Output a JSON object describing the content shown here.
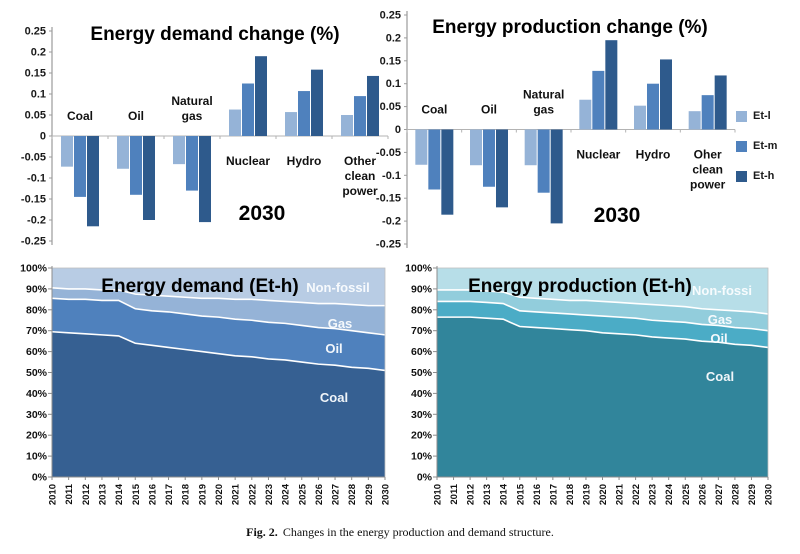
{
  "figure": {
    "caption_label": "Fig. 2.",
    "caption_text": "Changes in the energy production and demand structure."
  },
  "legend": {
    "items": [
      {
        "label": "Et-l",
        "color": "#95B3D7"
      },
      {
        "label": "Et-m",
        "color": "#4F81BD"
      },
      {
        "label": "Et-h",
        "color": "#2E5A8C"
      }
    ]
  },
  "chart_data": [
    {
      "id": "demand-change",
      "type": "bar",
      "title": "Energy demand change (%)",
      "annotation": "2030",
      "xlabel": "",
      "ylabel": "",
      "ylim": [
        -0.25,
        0.25
      ],
      "ytick_step": 0.05,
      "grid": false,
      "legend_position": "right-shared",
      "categories": [
        {
          "name": "Coal",
          "lines": [
            "Coal"
          ]
        },
        {
          "name": "Oil",
          "lines": [
            "Oil"
          ]
        },
        {
          "name": "Natural gas",
          "lines": [
            "Natural",
            "gas"
          ]
        },
        {
          "name": "Nuclear",
          "lines": [
            "Nuclear"
          ]
        },
        {
          "name": "Hydro",
          "lines": [
            "Hydro"
          ]
        },
        {
          "name": "Other clean power",
          "lines": [
            "Other",
            "clean",
            "power"
          ]
        }
      ],
      "series": [
        {
          "name": "Et-l",
          "color": "#95B3D7",
          "values": [
            -0.073,
            -0.078,
            -0.067,
            0.063,
            0.057,
            0.05
          ]
        },
        {
          "name": "Et-m",
          "color": "#4F81BD",
          "values": [
            -0.145,
            -0.14,
            -0.13,
            0.125,
            0.107,
            0.095
          ]
        },
        {
          "name": "Et-h",
          "color": "#2E5A8C",
          "values": [
            -0.215,
            -0.2,
            -0.205,
            0.19,
            0.158,
            0.143
          ]
        }
      ]
    },
    {
      "id": "production-change",
      "type": "bar",
      "title": "Energy production change (%)",
      "annotation": "2030",
      "xlabel": "",
      "ylabel": "",
      "ylim": [
        -0.25,
        0.25
      ],
      "ytick_step": 0.05,
      "grid": false,
      "legend_position": "right-shared",
      "categories": [
        {
          "name": "Coal",
          "lines": [
            "Coal"
          ]
        },
        {
          "name": "Oil",
          "lines": [
            "Oil"
          ]
        },
        {
          "name": "Natural gas",
          "lines": [
            "Natural",
            "gas"
          ]
        },
        {
          "name": "Nuclear",
          "lines": [
            "Nuclear"
          ]
        },
        {
          "name": "Hydro",
          "lines": [
            "Hydro"
          ]
        },
        {
          "name": "Oher clean power",
          "lines": [
            "Oher",
            "clean",
            "power"
          ]
        }
      ],
      "series": [
        {
          "name": "Et-l",
          "color": "#95B3D7",
          "values": [
            -0.077,
            -0.078,
            -0.078,
            0.065,
            0.052,
            0.04
          ]
        },
        {
          "name": "Et-m",
          "color": "#4F81BD",
          "values": [
            -0.131,
            -0.125,
            -0.138,
            0.128,
            0.1,
            0.075
          ]
        },
        {
          "name": "Et-h",
          "color": "#2E5A8C",
          "values": [
            -0.186,
            -0.17,
            -0.205,
            0.195,
            0.153,
            0.118
          ]
        }
      ]
    },
    {
      "id": "demand-structure",
      "type": "area",
      "title": "Energy demand (Et-h)",
      "stacked_percent": true,
      "xlabel": "",
      "ylabel": "",
      "ylim": [
        0,
        100
      ],
      "ytick_step": 10,
      "ytick_format": "percent",
      "x": [
        "2010",
        "2011",
        "2012",
        "2013",
        "2014",
        "2015",
        "2016",
        "2017",
        "2018",
        "2019",
        "2020",
        "2021",
        "2022",
        "2023",
        "2024",
        "2025",
        "2026",
        "2027",
        "2028",
        "2029",
        "2030"
      ],
      "series": [
        {
          "name": "Coal",
          "color": "#366092",
          "values": [
            69.5,
            69,
            68.5,
            68,
            67.5,
            64,
            63,
            62,
            61,
            60,
            59,
            58,
            57.5,
            56.5,
            56,
            55,
            54,
            53.5,
            52.5,
            52,
            51
          ]
        },
        {
          "name": "Oil",
          "color": "#4F81BD",
          "values": [
            16,
            16,
            16.5,
            16.5,
            17,
            16.5,
            16.5,
            17,
            17,
            17,
            17.5,
            17.5,
            17.5,
            17.5,
            17.5,
            17.5,
            17.5,
            17.5,
            17.5,
            17,
            17
          ]
        },
        {
          "name": "Gas",
          "color": "#95B3D7",
          "values": [
            5,
            5,
            5,
            5,
            5,
            7,
            7.5,
            7.5,
            8,
            8.5,
            9,
            9.5,
            10,
            10.5,
            10.5,
            11,
            11.5,
            12,
            12.5,
            13,
            14
          ]
        },
        {
          "name": "Non-fossil",
          "color": "#B8CCE4",
          "values": [
            9.5,
            10,
            10,
            10.5,
            10.5,
            12.5,
            13,
            13.5,
            14,
            14.5,
            14.5,
            15,
            15,
            15.5,
            16,
            16.5,
            17,
            17,
            17.5,
            18,
            18
          ]
        }
      ]
    },
    {
      "id": "production-structure",
      "type": "area",
      "title": "Energy production (Et-h)",
      "stacked_percent": true,
      "xlabel": "",
      "ylabel": "",
      "ylim": [
        0,
        100
      ],
      "ytick_step": 10,
      "ytick_format": "percent",
      "x": [
        "2010",
        "2011",
        "2012",
        "2013",
        "2014",
        "2015",
        "2016",
        "2017",
        "2018",
        "2019",
        "2020",
        "2021",
        "2022",
        "2023",
        "2024",
        "2025",
        "2026",
        "2027",
        "2028",
        "2029",
        "2030"
      ],
      "series": [
        {
          "name": "Coal",
          "color": "#31859B",
          "values": [
            76.5,
            76.5,
            76.5,
            76,
            75.5,
            72,
            71.5,
            71,
            70.5,
            70,
            69,
            68.5,
            68,
            67,
            66.5,
            66,
            65,
            64.5,
            63.5,
            63,
            62
          ]
        },
        {
          "name": "Oil",
          "color": "#4BACC6",
          "values": [
            7.5,
            7.5,
            7.5,
            7.5,
            7.5,
            7.5,
            7.5,
            7.5,
            7.5,
            7.5,
            8,
            8,
            8,
            8,
            8,
            8,
            8,
            8,
            8,
            8,
            8
          ]
        },
        {
          "name": "Gas",
          "color": "#92CDDC",
          "values": [
            5.5,
            5.5,
            5.5,
            5.5,
            5.5,
            6.5,
            6.5,
            6.5,
            6.5,
            7,
            7,
            7,
            7,
            7.5,
            7.5,
            7.5,
            7.5,
            7.5,
            8,
            8,
            8
          ]
        },
        {
          "name": "Non-fossi",
          "color": "#B7DEE8",
          "values": [
            10.5,
            10.5,
            10.5,
            11,
            11.5,
            14,
            14.5,
            15,
            15.5,
            15.5,
            16,
            16.5,
            17,
            17.5,
            18,
            18.5,
            19.5,
            20,
            20.5,
            21,
            22
          ]
        }
      ]
    }
  ]
}
